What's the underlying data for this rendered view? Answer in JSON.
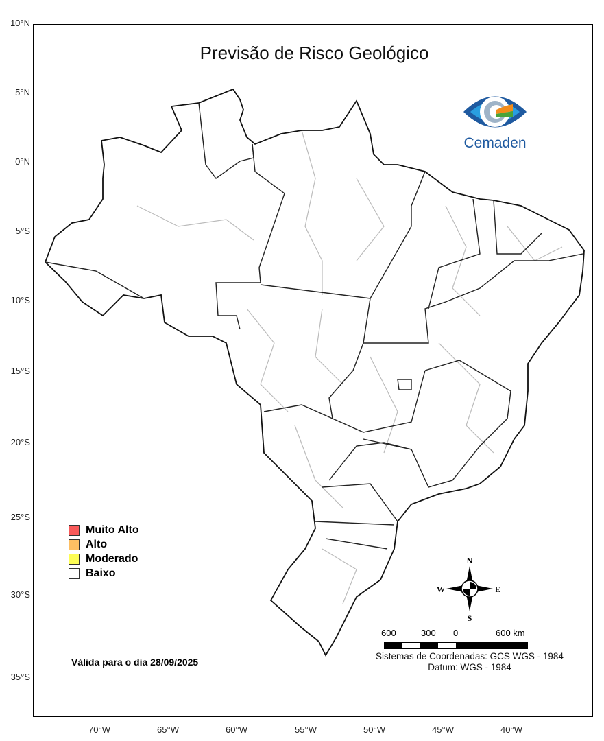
{
  "title": "Previsão de Risco Geológico",
  "logo": {
    "text": "Cemaden",
    "colors": [
      "#1f5aa0",
      "#2a9ee0",
      "#f28c1a",
      "#4aa33a"
    ]
  },
  "latitude_labels": [
    "10°N",
    "5°N",
    "0°N",
    "5°S",
    "10°S",
    "15°S",
    "20°S",
    "25°S",
    "30°S",
    "35°S"
  ],
  "longitude_labels": [
    "70°W",
    "65°W",
    "60°W",
    "55°W",
    "50°W",
    "45°W",
    "40°W"
  ],
  "legend": [
    {
      "label": "Muito Alto",
      "color": "#f95a5a"
    },
    {
      "label": "Alto",
      "color": "#fdbf63"
    },
    {
      "label": "Moderado",
      "color": "#fdfd55"
    },
    {
      "label": "Baixo",
      "color": "#ffffff"
    }
  ],
  "valid_date": "Válida para o dia 28/09/2025",
  "compass": {
    "n": "N",
    "s": "S",
    "e": "E",
    "w": "W"
  },
  "scale_bar": {
    "labels": [
      "600",
      "300",
      "0",
      "600 km"
    ]
  },
  "coordinate_system": "Sistemas de Coordenadas: GCS WGS - 1984",
  "datum": "Datum: WGS - 1984"
}
